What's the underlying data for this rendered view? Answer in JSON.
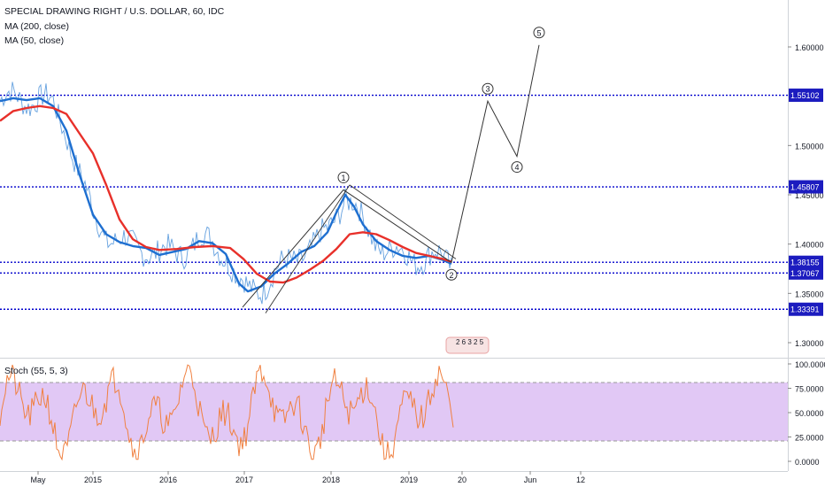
{
  "legend": {
    "symbol": "SPECIAL DRAWING RIGHT / U.S. DOLLAR, 60, IDC",
    "ma200": "MA (200, close)",
    "ma50": "MA (50, close)"
  },
  "stoch_label": "Stoch (55, 5, 3)",
  "events_badge": "2 6 3 2 5",
  "colors": {
    "price": "#4a90d9",
    "ma50": "#1e6fd0",
    "ma200": "#e8302a",
    "hline": "#0000cc",
    "label_bg": "#1c1cbf",
    "stoch_line": "#f08040",
    "stoch_band": "#e1c8f5"
  },
  "chart_data": [
    {
      "type": "line",
      "name": "price",
      "x_ticks": [
        "May",
        "2015",
        "2016",
        "2017",
        "2018",
        "2019",
        "20",
        "Jun",
        "12"
      ],
      "y_ticks": [
        "1.30000",
        "1.35000",
        "1.40000",
        "1.45000",
        "1.50000",
        "1.60000"
      ],
      "ylim": [
        1.28,
        1.635
      ],
      "series": [
        {
          "name": "MA (50, close)",
          "values": [
            [
              0,
              1.545
            ],
            [
              15,
              1.548
            ],
            [
              30,
              1.546
            ],
            [
              45,
              1.548
            ],
            [
              60,
              1.54
            ],
            [
              75,
              1.515
            ],
            [
              90,
              1.47
            ],
            [
              105,
              1.43
            ],
            [
              120,
              1.41
            ],
            [
              135,
              1.402
            ],
            [
              150,
              1.398
            ],
            [
              165,
              1.396
            ],
            [
              180,
              1.389
            ],
            [
              195,
              1.392
            ],
            [
              210,
              1.395
            ],
            [
              225,
              1.403
            ],
            [
              240,
              1.401
            ],
            [
              255,
              1.39
            ],
            [
              270,
              1.36
            ],
            [
              280,
              1.352
            ],
            [
              295,
              1.357
            ],
            [
              310,
              1.37
            ],
            [
              325,
              1.38
            ],
            [
              340,
              1.392
            ],
            [
              355,
              1.398
            ],
            [
              370,
              1.412
            ],
            [
              380,
              1.432
            ],
            [
              390,
              1.45
            ],
            [
              400,
              1.438
            ],
            [
              410,
              1.42
            ],
            [
              425,
              1.403
            ],
            [
              440,
              1.394
            ],
            [
              455,
              1.388
            ],
            [
              470,
              1.386
            ],
            [
              485,
              1.388
            ],
            [
              500,
              1.384
            ],
            [
              510,
              1.38
            ]
          ]
        },
        {
          "name": "MA (200, close)",
          "values": [
            [
              0,
              1.525
            ],
            [
              15,
              1.535
            ],
            [
              30,
              1.538
            ],
            [
              45,
              1.54
            ],
            [
              60,
              1.538
            ],
            [
              75,
              1.532
            ],
            [
              90,
              1.512
            ],
            [
              105,
              1.492
            ],
            [
              120,
              1.46
            ],
            [
              135,
              1.425
            ],
            [
              150,
              1.405
            ],
            [
              165,
              1.397
            ],
            [
              180,
              1.394
            ],
            [
              200,
              1.395
            ],
            [
              220,
              1.397
            ],
            [
              240,
              1.398
            ],
            [
              260,
              1.396
            ],
            [
              275,
              1.385
            ],
            [
              290,
              1.37
            ],
            [
              305,
              1.362
            ],
            [
              320,
              1.361
            ],
            [
              335,
              1.366
            ],
            [
              350,
              1.374
            ],
            [
              365,
              1.383
            ],
            [
              380,
              1.395
            ],
            [
              395,
              1.41
            ],
            [
              410,
              1.412
            ],
            [
              425,
              1.41
            ],
            [
              440,
              1.404
            ],
            [
              455,
              1.397
            ],
            [
              470,
              1.391
            ],
            [
              485,
              1.388
            ],
            [
              500,
              1.385
            ],
            [
              510,
              1.382
            ]
          ]
        }
      ],
      "horizontal_levels": [
        "1.55102",
        "1.45807",
        "1.38155",
        "1.37067",
        "1.33391"
      ],
      "elliott_wave": [
        {
          "label": "1",
          "value": 1.455
        },
        {
          "label": "2",
          "value": 1.3815
        },
        {
          "label": "3",
          "value": 1.545
        },
        {
          "label": "4",
          "value": 1.489
        },
        {
          "label": "5",
          "value": 1.602
        }
      ]
    },
    {
      "type": "line",
      "name": "Stoch (55, 5, 3)",
      "y_ticks": [
        "100.0000",
        "75.0000",
        "50.0000",
        "25.0000",
        "0.0000"
      ],
      "ylim": [
        -5,
        102
      ],
      "band": [
        20,
        80
      ]
    }
  ]
}
